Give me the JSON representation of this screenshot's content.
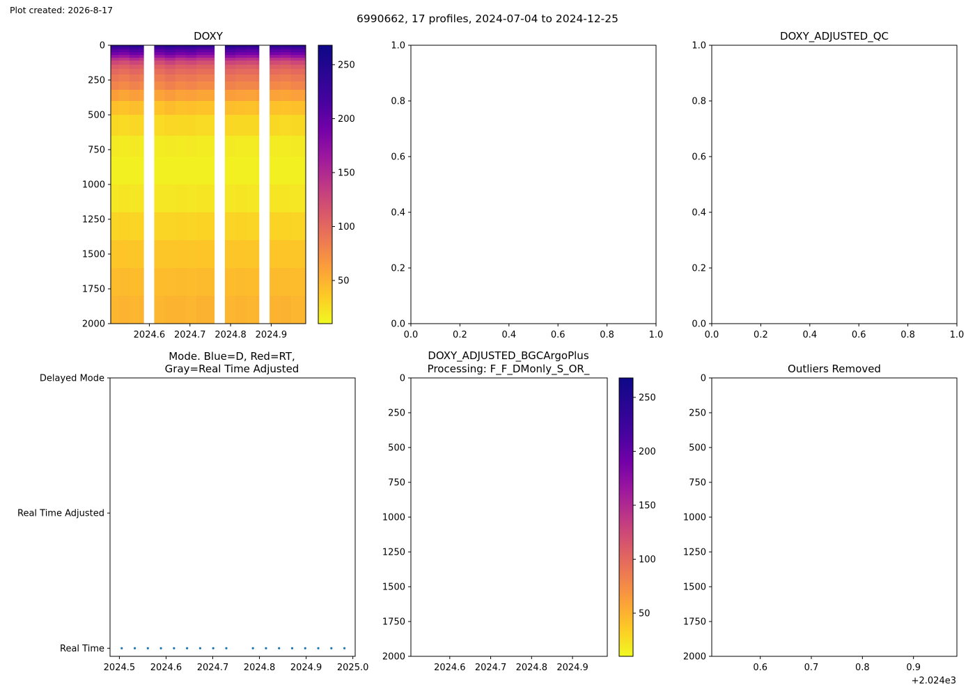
{
  "figure": {
    "plot_created": "Plot created: 2026-8-17",
    "suptitle": "6990662, 17 profiles, 2024-07-04 to 2024-12-25"
  },
  "colormap": "plasma_r",
  "chart_data": [
    {
      "id": "doxy",
      "type": "heatmap",
      "title": "DOXY",
      "xlim": [
        2024.505,
        2024.985
      ],
      "ylim": [
        2000,
        0
      ],
      "y_inverted": true,
      "xticks": [
        2024.6,
        2024.7,
        2024.8,
        2024.9
      ],
      "xtick_labels": [
        "2024.6",
        "2024.7",
        "2024.8",
        "2024.9"
      ],
      "yticks": [
        0,
        250,
        500,
        750,
        1000,
        1250,
        1500,
        1750,
        2000
      ],
      "ytick_labels": [
        "0",
        "250",
        "500",
        "750",
        "1000",
        "1250",
        "1500",
        "1750",
        "2000"
      ],
      "colorbar": {
        "vmin": 10,
        "vmax": 268,
        "ticks": [
          50,
          100,
          150,
          200,
          250
        ],
        "tick_labels": [
          "50",
          "100",
          "150",
          "200",
          "250"
        ]
      },
      "profile_times": [
        2024.505,
        2024.525,
        2024.551,
        2024.576,
        2024.586,
        2024.612,
        2024.638,
        2024.664,
        2024.69,
        2024.716,
        2024.76,
        2024.786,
        2024.812,
        2024.838,
        2024.864,
        2024.87,
        2024.896,
        2024.922,
        2024.948,
        2024.985
      ],
      "depth_levels": [
        0,
        15,
        30,
        50,
        70,
        90,
        110,
        140,
        170,
        210,
        260,
        320,
        400,
        500,
        650,
        800,
        1000,
        1200,
        1400,
        1600,
        1800,
        2000
      ],
      "profiles": [
        [
          240,
          220,
          205,
          190,
          170,
          145,
          125,
          110,
          100,
          90,
          80,
          62,
          42,
          28,
          18,
          15,
          20,
          30,
          38,
          44,
          48
        ],
        [
          235,
          215,
          200,
          185,
          165,
          140,
          120,
          106,
          96,
          86,
          76,
          58,
          40,
          27,
          17,
          15,
          21,
          31,
          39,
          45,
          49
        ],
        [
          245,
          225,
          210,
          195,
          175,
          150,
          128,
          112,
          101,
          91,
          81,
          63,
          43,
          29,
          18,
          15,
          20,
          30,
          38,
          44,
          48
        ],
        [
          242,
          222,
          206,
          190,
          168,
          142,
          122,
          107,
          97,
          87,
          77,
          60,
          41,
          28,
          17,
          15,
          21,
          31,
          39,
          45,
          49
        ],
        null,
        [
          238,
          218,
          202,
          186,
          166,
          141,
          121,
          106,
          96,
          86,
          76,
          59,
          40,
          27,
          17,
          15,
          20,
          30,
          38,
          44,
          48
        ],
        [
          246,
          226,
          211,
          196,
          176,
          151,
          129,
          113,
          102,
          92,
          82,
          64,
          44,
          29,
          18,
          15,
          20,
          30,
          38,
          44,
          49
        ],
        [
          240,
          220,
          204,
          188,
          167,
          142,
          122,
          107,
          97,
          87,
          77,
          60,
          41,
          28,
          17,
          15,
          21,
          31,
          39,
          45,
          49
        ],
        [
          244,
          224,
          208,
          192,
          172,
          146,
          125,
          110,
          99,
          89,
          79,
          61,
          42,
          28,
          18,
          15,
          20,
          30,
          38,
          44,
          48
        ],
        [
          236,
          216,
          200,
          184,
          163,
          139,
          119,
          105,
          95,
          85,
          75,
          58,
          40,
          27,
          17,
          15,
          21,
          31,
          39,
          45,
          50
        ],
        null,
        [
          248,
          228,
          212,
          196,
          176,
          150,
          128,
          112,
          101,
          91,
          81,
          63,
          43,
          29,
          18,
          15,
          20,
          30,
          38,
          44,
          48
        ],
        [
          242,
          222,
          206,
          190,
          170,
          145,
          124,
          109,
          98,
          88,
          78,
          61,
          42,
          28,
          17,
          15,
          21,
          31,
          39,
          45,
          49
        ],
        [
          238,
          218,
          203,
          188,
          168,
          143,
          123,
          108,
          98,
          88,
          78,
          60,
          41,
          28,
          17,
          15,
          20,
          30,
          38,
          44,
          48
        ],
        [
          245,
          225,
          209,
          193,
          173,
          147,
          126,
          111,
          100,
          90,
          80,
          62,
          43,
          29,
          18,
          15,
          20,
          30,
          38,
          44,
          49
        ],
        null,
        [
          240,
          220,
          204,
          188,
          167,
          142,
          122,
          107,
          97,
          87,
          77,
          60,
          41,
          28,
          17,
          15,
          21,
          31,
          39,
          45,
          49
        ],
        [
          236,
          216,
          200,
          184,
          164,
          139,
          119,
          105,
          95,
          85,
          75,
          58,
          40,
          27,
          17,
          15,
          21,
          31,
          39,
          45,
          50
        ],
        [
          243,
          223,
          207,
          191,
          171,
          146,
          125,
          110,
          99,
          89,
          79,
          61,
          42,
          28,
          18,
          15,
          20,
          30,
          38,
          44,
          48
        ]
      ]
    },
    {
      "id": "empty-top-middle",
      "type": "scatter",
      "title": "",
      "xlim": [
        0,
        1
      ],
      "ylim": [
        0,
        1
      ],
      "xticks": [
        0,
        0.2,
        0.4,
        0.6,
        0.8,
        1
      ],
      "xtick_labels": [
        "0.0",
        "0.2",
        "0.4",
        "0.6",
        "0.8",
        "1.0"
      ],
      "yticks": [
        0,
        0.2,
        0.4,
        0.6,
        0.8,
        1
      ],
      "ytick_labels": [
        "0.0",
        "0.2",
        "0.4",
        "0.6",
        "0.8",
        "1.0"
      ]
    },
    {
      "id": "doxy-adjusted-qc",
      "type": "scatter",
      "title": "DOXY_ADJUSTED_QC",
      "xlim": [
        0,
        1
      ],
      "ylim": [
        0,
        1
      ],
      "xticks": [
        0,
        0.2,
        0.4,
        0.6,
        0.8,
        1
      ],
      "xtick_labels": [
        "0.0",
        "0.2",
        "0.4",
        "0.6",
        "0.8",
        "1.0"
      ],
      "yticks": [
        0,
        0.2,
        0.4,
        0.6,
        0.8,
        1
      ],
      "ytick_labels": [
        "0.0",
        "0.2",
        "0.4",
        "0.6",
        "0.8",
        "1.0"
      ]
    },
    {
      "id": "mode",
      "type": "scatter",
      "title": "Mode. Blue=D, Red=RT,",
      "title2": "Gray=Real Time Adjusted",
      "xlim": [
        2024.48,
        2025.005
      ],
      "ylim": [
        -0.06,
        2
      ],
      "xticks": [
        2024.5,
        2024.6,
        2024.7,
        2024.8,
        2024.9,
        2025.0
      ],
      "xtick_labels": [
        "2024.5",
        "2024.6",
        "2024.7",
        "2024.8",
        "2024.9",
        "2025.0"
      ],
      "yticks": [
        0,
        1,
        2
      ],
      "ytick_labels": [
        "Real Time",
        "Real Time Adjusted",
        "Delayed Mode"
      ],
      "point_color": "#1f77b4",
      "x": [
        2024.505,
        2024.533,
        2024.561,
        2024.589,
        2024.617,
        2024.645,
        2024.673,
        2024.701,
        2024.729,
        2024.786,
        2024.814,
        2024.842,
        2024.87,
        2024.898,
        2024.926,
        2024.954,
        2024.982
      ],
      "y": [
        0,
        0,
        0,
        0,
        0,
        0,
        0,
        0,
        0,
        0,
        0,
        0,
        0,
        0,
        0,
        0,
        0
      ]
    },
    {
      "id": "doxy-adjusted-bgc",
      "type": "heatmap",
      "title": "DOXY_ADJUSTED_BGCArgoPlus",
      "title2": "Processing: F_F_DMonly_S_OR_",
      "xlim": [
        2024.505,
        2024.985
      ],
      "ylim": [
        2000,
        0
      ],
      "y_inverted": true,
      "xticks": [
        2024.6,
        2024.7,
        2024.8,
        2024.9
      ],
      "xtick_labels": [
        "2024.6",
        "2024.7",
        "2024.8",
        "2024.9"
      ],
      "yticks": [
        0,
        250,
        500,
        750,
        1000,
        1250,
        1500,
        1750,
        2000
      ],
      "ytick_labels": [
        "0",
        "250",
        "500",
        "750",
        "1000",
        "1250",
        "1500",
        "1750",
        "2000"
      ],
      "colorbar": {
        "vmin": 10,
        "vmax": 268,
        "ticks": [
          50,
          100,
          150,
          200,
          250
        ],
        "tick_labels": [
          "50",
          "100",
          "150",
          "200",
          "250"
        ]
      }
    },
    {
      "id": "outliers",
      "type": "scatter",
      "title": "Outliers Removed",
      "xlim": [
        0.505,
        0.985
      ],
      "ylim": [
        2000,
        0
      ],
      "y_inverted": true,
      "xticks": [
        0.6,
        0.7,
        0.8,
        0.9
      ],
      "xtick_labels": [
        "0.6",
        "0.7",
        "0.8",
        "0.9"
      ],
      "x_offset_label": "+2.024e3",
      "yticks": [
        0,
        250,
        500,
        750,
        1000,
        1250,
        1500,
        1750,
        2000
      ],
      "ytick_labels": [
        "0",
        "250",
        "500",
        "750",
        "1000",
        "1250",
        "1500",
        "1750",
        "2000"
      ]
    }
  ]
}
